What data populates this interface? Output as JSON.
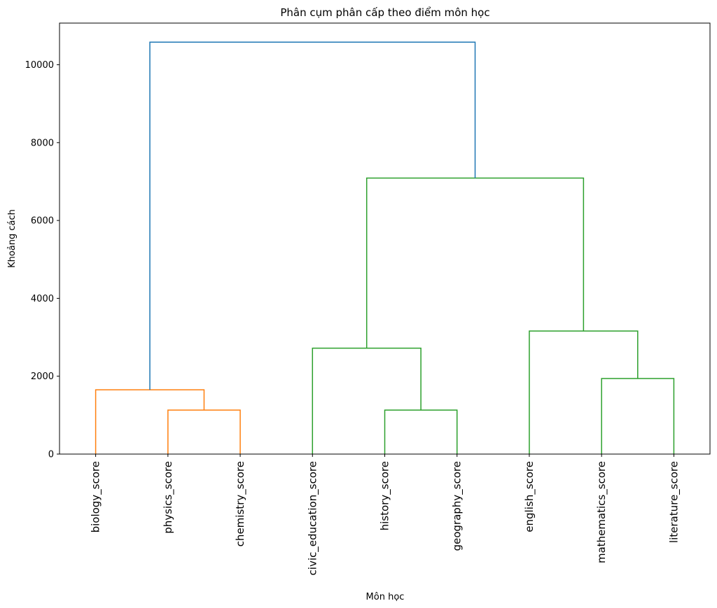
{
  "chart_data": {
    "type": "dendrogram",
    "title": "Phân cụm phân cấp theo điểm môn học",
    "xlabel": "Môn học",
    "ylabel": "Khoảng cách",
    "ylim": [
      0,
      11070
    ],
    "yticks": [
      0,
      2000,
      4000,
      6000,
      8000,
      10000
    ],
    "grid": false,
    "leaves": [
      "biology_score",
      "physics_score",
      "chemistry_score",
      "civic_education_score",
      "history_score",
      "geography_score",
      "english_score",
      "mathematics_score",
      "literature_score"
    ],
    "colors": {
      "cluster_1": "#ff7f0e",
      "cluster_2": "#2ca02c",
      "root": "#1f77b4"
    },
    "merges": [
      {
        "left": "physics_score",
        "right": "chemistry_score",
        "height": 1130,
        "color": "cluster_1"
      },
      {
        "left": "biology_score",
        "right": "physics_score + chemistry_score",
        "height": 1650,
        "color": "cluster_1"
      },
      {
        "left": "history_score",
        "right": "geography_score",
        "height": 1130,
        "color": "cluster_2"
      },
      {
        "left": "civic_education_score",
        "right": "history_score + geography_score",
        "height": 2720,
        "color": "cluster_2"
      },
      {
        "left": "mathematics_score",
        "right": "literature_score",
        "height": 1940,
        "color": "cluster_2"
      },
      {
        "left": "english_score",
        "right": "mathematics_score + literature_score",
        "height": 3160,
        "color": "cluster_2"
      },
      {
        "left": "civic/history/geography cluster",
        "right": "english/mathematics/literature cluster",
        "height": 7090,
        "color": "cluster_2"
      },
      {
        "left": "biology/physics/chemistry cluster",
        "right": "all remaining subjects",
        "height": 10580,
        "color": "root"
      }
    ]
  }
}
